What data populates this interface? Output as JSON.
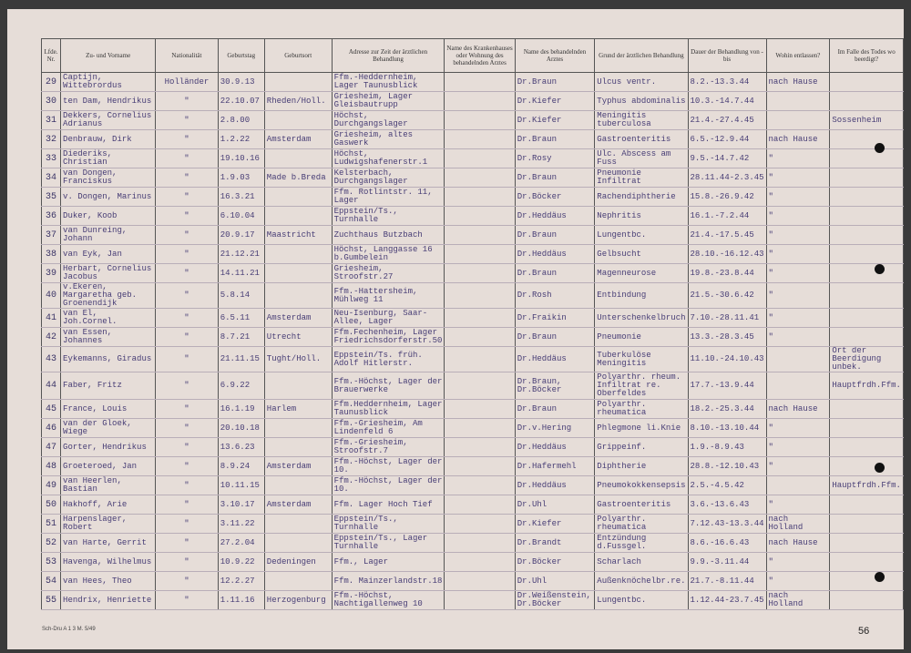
{
  "header": {
    "columns": [
      "Lfde. Nr.",
      "Zu- und Vorname",
      "Nationalität",
      "Geburtstag",
      "Geburtsort",
      "Adresse zur Zeit der ärztlichen Behandlung",
      "Name des Krankenhauses oder Wohnung des behandelnden Arztes",
      "Name des behandelnden Arztes",
      "Grund der ärztlichen Behandlung",
      "Dauer der Behandlung von - bis",
      "Wohin entlassen?",
      "Im Falle des Todes wo beerdigt?"
    ]
  },
  "table": {
    "rows": [
      [
        "29",
        "Captijn, Wittebrordus",
        "Holländer",
        "30.9.13",
        "",
        "Ffm.-Heddernheim, Lager Taunusblick",
        "",
        "Dr.Braun",
        "Ulcus ventr.",
        "8.2.-13.3.44",
        "nach Hause",
        ""
      ],
      [
        "30",
        "ten Dam, Hendrikus",
        "\"",
        "22.10.07",
        "Rheden/Holl.",
        "Griesheim, Lager Gleisbautrupp",
        "",
        "Dr.Kiefer",
        "Typhus abdominalis",
        "10.3.-14.7.44",
        "",
        ""
      ],
      [
        "31",
        "Dekkers, Cornelius Adrianus",
        "\"",
        "2.8.00",
        "",
        "Höchst, Durchgangslager",
        "",
        "Dr.Kiefer",
        "Meningitis tuberculosa",
        "21.4.-27.4.45",
        "",
        "Sossenheim"
      ],
      [
        "32",
        "Denbrauw, Dirk",
        "\"",
        "1.2.22",
        "Amsterdam",
        "Griesheim, altes Gaswerk",
        "",
        "Dr.Braun",
        "Gastroenteritis",
        "6.5.-12.9.44",
        "nach Hause",
        ""
      ],
      [
        "33",
        "Diederiks, Christian",
        "\"",
        "19.10.16",
        "",
        "Höchst, Ludwigshafenerstr.1",
        "",
        "Dr.Rosy",
        "Ulc. Abscess am Fuss",
        "9.5.-14.7.42",
        "\"",
        ""
      ],
      [
        "34",
        "van Dongen, Franciskus",
        "\"",
        "1.9.03",
        "Made b.Breda",
        "Kelsterbach, Durchgangslager",
        "",
        "Dr.Braun",
        "Pneumonie Infiltrat",
        "28.11.44-2.3.45",
        "\"",
        ""
      ],
      [
        "35",
        "v. Dongen, Marinus",
        "\"",
        "16.3.21",
        "",
        "Ffm. Rotlintstr. 11, Lager",
        "",
        "Dr.Böcker",
        "Rachendiphtherie",
        "15.8.-26.9.42",
        "\"",
        ""
      ],
      [
        "36",
        "Duker, Koob",
        "\"",
        "6.10.04",
        "",
        "Eppstein/Ts., Turnhalle",
        "",
        "Dr.Heddäus",
        "Nephritis",
        "16.1.-7.2.44",
        "\"",
        ""
      ],
      [
        "37",
        "van Dunreing, Johann",
        "\"",
        "20.9.17",
        "Maastricht",
        "Zuchthaus Butzbach",
        "",
        "Dr.Braun",
        "Lungentbc.",
        "21.4.-17.5.45",
        "\"",
        ""
      ],
      [
        "38",
        "van Eyk, Jan",
        "\"",
        "21.12.21",
        "",
        "Höchst, Langgasse 16 b.Gumbelein",
        "",
        "Dr.Heddäus",
        "Gelbsucht",
        "28.10.-16.12.43",
        "\"",
        ""
      ],
      [
        "39",
        "Herbart, Cornelius Jacobus",
        "\"",
        "14.11.21",
        "",
        "Griesheim, Stroofstr.27",
        "",
        "Dr.Braun",
        "Magenneurose",
        "19.8.-23.8.44",
        "\"",
        ""
      ],
      [
        "40",
        "v.Ekeren, Margaretha geb. Groenendijk",
        "\"",
        "5.8.14",
        "",
        "Ffm.-Hattersheim, Mühlweg 11",
        "",
        "Dr.Rosh",
        "Entbindung",
        "21.5.-30.6.42",
        "\"",
        ""
      ],
      [
        "41",
        "van El, Joh.Cornel.",
        "\"",
        "6.5.11",
        "Amsterdam",
        "Neu-Isenburg, Saar-Allee, Lager",
        "",
        "Dr.Fraikin",
        "Unterschenkelbruch",
        "7.10.-28.11.41",
        "\"",
        ""
      ],
      [
        "42",
        "van Essen, Johannes",
        "\"",
        "8.7.21",
        "Utrecht",
        "Ffm.Fechenheim, Lager Friedrichsdorferstr.50",
        "",
        "Dr.Braun",
        "Pneumonie",
        "13.3.-28.3.45",
        "\"",
        ""
      ],
      [
        "43",
        "Eykemanns, Giradus",
        "\"",
        "21.11.15",
        "Tught/Holl.",
        "Eppstein/Ts. früh. Adolf Hitlerstr.",
        "",
        "Dr.Heddäus",
        "Tuberkulöse Meningitis",
        "11.10.-24.10.43",
        "",
        "Ort der Beerdigung unbek."
      ],
      [
        "44",
        "Faber, Fritz",
        "\"",
        "6.9.22",
        "",
        "Ffm.-Höchst, Lager der Brauerwerke",
        "",
        "Dr.Braun, Dr.Böcker",
        "Polyarthr. rheum. Infiltrat re. Oberfeldes",
        "17.7.-13.9.44",
        "",
        "Hauptfrdh.Ffm."
      ],
      [
        "45",
        "France, Louis",
        "\"",
        "16.1.19",
        "Harlem",
        "Ffm.Heddernheim, Lager Taunusblick",
        "",
        "Dr.Braun",
        "Polyarthr. rheumatica",
        "18.2.-25.3.44",
        "nach Hause",
        ""
      ],
      [
        "46",
        "van der Gloek, Wiege",
        "\"",
        "20.10.18",
        "",
        "Ffm.-Griesheim, Am Lindenfeld 6",
        "",
        "Dr.v.Hering",
        "Phlegmone li.Knie",
        "8.10.-13.10.44",
        "\"",
        ""
      ],
      [
        "47",
        "Gorter, Hendrikus",
        "\"",
        "13.6.23",
        "",
        "Ffm.-Griesheim, Stroofstr.7",
        "",
        "Dr.Heddäus",
        "Grippeinf.",
        "1.9.-8.9.43",
        "\"",
        ""
      ],
      [
        "48",
        "Groeteroed, Jan",
        "\"",
        "8.9.24",
        "Amsterdam",
        "Ffm.-Höchst, Lager der 10.",
        "",
        "Dr.Hafermehl",
        "Diphtherie",
        "28.8.-12.10.43",
        "\"",
        ""
      ],
      [
        "49",
        "van Heerlen, Bastian",
        "\"",
        "10.11.15",
        "",
        "Ffm.-Höchst, Lager der 10.",
        "",
        "Dr.Heddäus",
        "Pneumokokkensepsis",
        "2.5.-4.5.42",
        "",
        "Hauptfrdh.Ffm."
      ],
      [
        "50",
        "Hakhoff, Arie",
        "\"",
        "3.10.17",
        "Amsterdam",
        "Ffm. Lager Hoch Tief",
        "",
        "Dr.Uhl",
        "Gastroenteritis",
        "3.6.-13.6.43",
        "\"",
        ""
      ],
      [
        "51",
        "Harpenslager, Robert",
        "\"",
        "3.11.22",
        "",
        "Eppstein/Ts., Turnhalle",
        "",
        "Dr.Kiefer",
        "Polyarthr. rheumatica",
        "7.12.43-13.3.44",
        "nach Holland",
        ""
      ],
      [
        "52",
        "van Harte, Gerrit",
        "\"",
        "27.2.04",
        "",
        "Eppstein/Ts., Lager Turnhalle",
        "",
        "Dr.Brandt",
        "Entzündung d.Fussgel.",
        "8.6.-16.6.43",
        "nach Hause",
        ""
      ],
      [
        "53",
        "Havenga, Wilhelmus",
        "\"",
        "10.9.22",
        "Dedeningen",
        "Ffm., Lager",
        "",
        "Dr.Böcker",
        "Scharlach",
        "9.9.-3.11.44",
        "\"",
        ""
      ],
      [
        "54",
        "van Hees, Theo",
        "\"",
        "12.2.27",
        "",
        "Ffm. Mainzerlandstr.18",
        "",
        "Dr.Uhl",
        "Außenknöchelbr.re.",
        "21.7.-8.11.44",
        "\"",
        ""
      ],
      [
        "55",
        "Hendrix, Henriette",
        "\"",
        "1.11.16",
        "Herzogenburg",
        "Ffm.-Höchst, Nachtigallenweg 10",
        "",
        "Dr.Weißenstein, Dr.Böcker",
        "Lungentbc.",
        "1.12.44-23.7.45",
        "nach Holland",
        ""
      ]
    ]
  },
  "footer": {
    "code": "Sch-Dru A 1 3 M. 5/49",
    "page": "56"
  }
}
